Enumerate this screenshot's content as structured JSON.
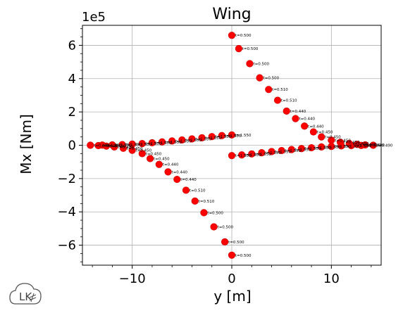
{
  "chart_data": {
    "type": "scatter",
    "title": "Wing",
    "xlabel": "y [m]",
    "ylabel": "Mx [Nm]",
    "y_multiplier": "1e5",
    "xlim": [
      -15,
      15
    ],
    "ylim": [
      -7.2,
      7.2
    ],
    "x_ticks": [
      -10,
      0,
      10
    ],
    "x_tick_labels": [
      "−10",
      "0",
      "10"
    ],
    "y_ticks": [
      -6,
      -4,
      -2,
      0,
      2,
      4,
      6
    ],
    "y_tick_labels": [
      "−6",
      "−4",
      "−2",
      "0",
      "2",
      "4",
      "6"
    ],
    "grid": true,
    "marker_color": "#ff0000",
    "marker_edge_color": "#cc0000",
    "series": [
      {
        "points": [
          {
            "x": 0.0,
            "y": 6.6,
            "label": "t=0.500"
          },
          {
            "x": 0.7,
            "y": 5.8,
            "label": "t=0.500"
          },
          {
            "x": 1.8,
            "y": 4.9,
            "label": "t=0.500"
          },
          {
            "x": 2.8,
            "y": 4.05,
            "label": "t=0.500"
          },
          {
            "x": 3.7,
            "y": 3.35,
            "label": "t=0.510"
          },
          {
            "x": 4.6,
            "y": 2.7,
            "label": "t=0.510"
          },
          {
            "x": 5.5,
            "y": 2.05,
            "label": "t=0.440"
          },
          {
            "x": 6.4,
            "y": 1.6,
            "label": "t=0.440"
          },
          {
            "x": 7.3,
            "y": 1.15,
            "label": "t=0.440"
          },
          {
            "x": 8.2,
            "y": 0.8,
            "label": "t=0.450"
          },
          {
            "x": 9.0,
            "y": 0.5,
            "label": "t=0.450"
          },
          {
            "x": 10.0,
            "y": 0.3,
            "label": "t=0.450"
          },
          {
            "x": 10.9,
            "y": 0.18,
            "label": "t=0.450"
          },
          {
            "x": 11.8,
            "y": 0.1,
            "label": "t=0.480"
          },
          {
            "x": 12.6,
            "y": 0.05,
            "label": "t=0.400"
          },
          {
            "x": 13.4,
            "y": 0.02,
            "label": "t=0.490"
          },
          {
            "x": 14.2,
            "y": 0.0,
            "label": "t=0.490"
          }
        ]
      },
      {
        "points": [
          {
            "x": 0.0,
            "y": -6.6,
            "label": "t=0.500"
          },
          {
            "x": -0.7,
            "y": -5.8,
            "label": "t=0.500"
          },
          {
            "x": -1.8,
            "y": -4.9,
            "label": "t=0.500"
          },
          {
            "x": -2.8,
            "y": -4.05,
            "label": "t=0.500"
          },
          {
            "x": -3.7,
            "y": -3.35,
            "label": "t=0.510"
          },
          {
            "x": -4.6,
            "y": -2.7,
            "label": "t=0.510"
          },
          {
            "x": -5.5,
            "y": -2.05,
            "label": "t=0.440"
          },
          {
            "x": -6.4,
            "y": -1.6,
            "label": "t=0.440"
          },
          {
            "x": -7.3,
            "y": -1.15,
            "label": "t=0.440"
          },
          {
            "x": -8.2,
            "y": -0.8,
            "label": "t=0.450"
          },
          {
            "x": -9.0,
            "y": -0.5,
            "label": "t=0.450"
          },
          {
            "x": -10.0,
            "y": -0.3,
            "label": "t=0.450"
          },
          {
            "x": -10.9,
            "y": -0.18,
            "label": "t=0.450"
          },
          {
            "x": -11.8,
            "y": -0.1,
            "label": "t=0.480"
          },
          {
            "x": -12.6,
            "y": -0.05,
            "label": "t=0.400"
          },
          {
            "x": -13.4,
            "y": -0.02,
            "label": "t=0.490"
          },
          {
            "x": -14.2,
            "y": 0.0,
            "label": "t=0.490"
          }
        ]
      },
      {
        "points": [
          {
            "x": 0.0,
            "y": 0.62,
            "label": "t=1.550"
          },
          {
            "x": -1.0,
            "y": 0.58,
            "label": "t=1.550"
          },
          {
            "x": -2.0,
            "y": 0.52,
            "label": "t=1.550"
          },
          {
            "x": -3.0,
            "y": 0.45,
            "label": "t=1.550"
          },
          {
            "x": -4.0,
            "y": 0.38,
            "label": "t=1.550"
          },
          {
            "x": -5.0,
            "y": 0.32,
            "label": "t=1.550"
          },
          {
            "x": -6.0,
            "y": 0.26,
            "label": "t=1.550"
          },
          {
            "x": -7.0,
            "y": 0.2,
            "label": "t=1.550"
          },
          {
            "x": -8.0,
            "y": 0.15,
            "label": "t=1.550"
          },
          {
            "x": -9.0,
            "y": 0.1,
            "label": "t=1.550"
          },
          {
            "x": -10.0,
            "y": 0.07,
            "label": "t=1.550"
          },
          {
            "x": -11.0,
            "y": 0.04,
            "label": "t=1.550"
          },
          {
            "x": -12.0,
            "y": 0.02,
            "label": "t=1.550"
          },
          {
            "x": -13.0,
            "y": 0.01,
            "label": "t=1.550"
          }
        ]
      },
      {
        "points": [
          {
            "x": 0.0,
            "y": -0.62,
            "label": "t=1.550"
          },
          {
            "x": 1.0,
            "y": -0.58,
            "label": "t=1.550"
          },
          {
            "x": 2.0,
            "y": -0.52,
            "label": "t=1.550"
          },
          {
            "x": 3.0,
            "y": -0.45,
            "label": "t=1.550"
          },
          {
            "x": 4.0,
            "y": -0.38,
            "label": "t=1.550"
          },
          {
            "x": 5.0,
            "y": -0.32,
            "label": "t=1.550"
          },
          {
            "x": 6.0,
            "y": -0.26,
            "label": "t=1.550"
          },
          {
            "x": 7.0,
            "y": -0.2,
            "label": "t=1.550"
          },
          {
            "x": 8.0,
            "y": -0.15,
            "label": "t=1.550"
          },
          {
            "x": 9.0,
            "y": -0.1,
            "label": "t=1.550"
          },
          {
            "x": 10.0,
            "y": -0.07,
            "label": "t=1.550"
          },
          {
            "x": 11.0,
            "y": -0.04,
            "label": "t=1.550"
          },
          {
            "x": 12.0,
            "y": -0.02,
            "label": "t=1.550"
          },
          {
            "x": 13.0,
            "y": -0.01,
            "label": "t=1.550"
          }
        ]
      }
    ]
  },
  "logo": {
    "text": "LK",
    "icon": "cloud-logo-icon"
  }
}
